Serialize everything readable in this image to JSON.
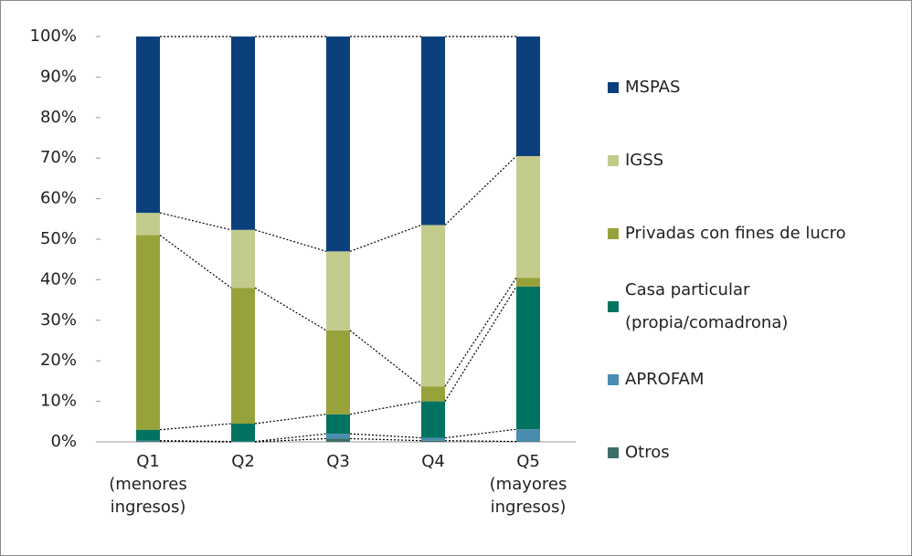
{
  "chart_data": {
    "type": "stacked_bar",
    "categories": [
      "Q1 (menores ingresos)",
      "Q2",
      "Q3",
      "Q4",
      "Q5 (mayores ingresos)"
    ],
    "series": [
      {
        "name": "Otros",
        "color": "#3d6e69",
        "values": [
          0.2,
          0,
          0.8,
          0.3,
          0.1
        ]
      },
      {
        "name": "APROFAM",
        "color": "#4a8db0",
        "values": [
          0.1,
          0.1,
          1.2,
          0.7,
          3
        ]
      },
      {
        "name": "Casa particular (propia/comadrona)",
        "color": "#007460",
        "values": [
          2.7,
          4.4,
          4.8,
          9,
          35.2
        ]
      },
      {
        "name": "Privadas con fines de lucro",
        "color": "#98a23a",
        "values": [
          48,
          33.5,
          20.7,
          3.7,
          2.2
        ]
      },
      {
        "name": "IGSS",
        "color": "#c3cb8c",
        "values": [
          5.5,
          14.3,
          19.5,
          39.8,
          30
        ]
      },
      {
        "name": "MSPAS",
        "color": "#0b407d",
        "values": [
          43.5,
          47.7,
          53,
          46.5,
          29.5
        ]
      }
    ],
    "ylim": [
      0,
      100
    ],
    "yticks": [
      {
        "value": 0,
        "label": "0%"
      },
      {
        "value": 10,
        "label": "10%"
      },
      {
        "value": 20,
        "label": "20%"
      },
      {
        "value": 30,
        "label": "30%"
      },
      {
        "value": 40,
        "label": "40%"
      },
      {
        "value": 50,
        "label": "50%"
      },
      {
        "value": 60,
        "label": "60%"
      },
      {
        "value": 70,
        "label": "70%"
      },
      {
        "value": 80,
        "label": "80%"
      },
      {
        "value": 90,
        "label": "90%"
      },
      {
        "value": 100,
        "label": "100%"
      }
    ],
    "legend": "right",
    "series_lines": true
  }
}
